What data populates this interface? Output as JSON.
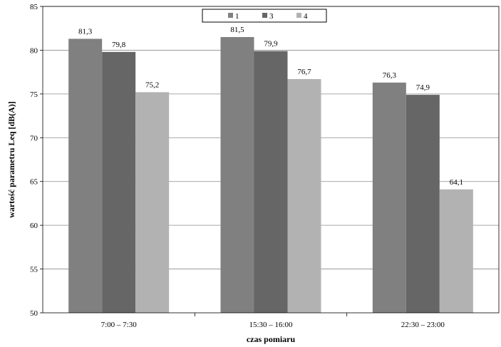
{
  "chart_data": {
    "type": "bar",
    "categories": [
      "7:00 – 7:30",
      "15:30 – 16:00",
      "22:30 – 23:00"
    ],
    "series": [
      {
        "name": "1",
        "values": [
          81.3,
          81.5,
          76.3
        ],
        "labels": [
          "81,3",
          "81,5",
          "76,3"
        ],
        "color": "#808080"
      },
      {
        "name": "3",
        "values": [
          79.8,
          79.9,
          74.9
        ],
        "labels": [
          "79,8",
          "79,9",
          "74,9"
        ],
        "color": "#666666"
      },
      {
        "name": "4",
        "values": [
          75.2,
          76.7,
          64.1
        ],
        "labels": [
          "75,2",
          "76,7",
          "64,1"
        ],
        "color": "#b2b2b2"
      }
    ],
    "xlabel": "czas pomiaru",
    "ylabel": "wartość parametru Leq [dB(A)]",
    "ylim": [
      50,
      85
    ],
    "yticks": [
      50,
      55,
      60,
      65,
      70,
      75,
      80,
      85
    ],
    "grid": "horizontal",
    "legend_position": "top-center"
  }
}
